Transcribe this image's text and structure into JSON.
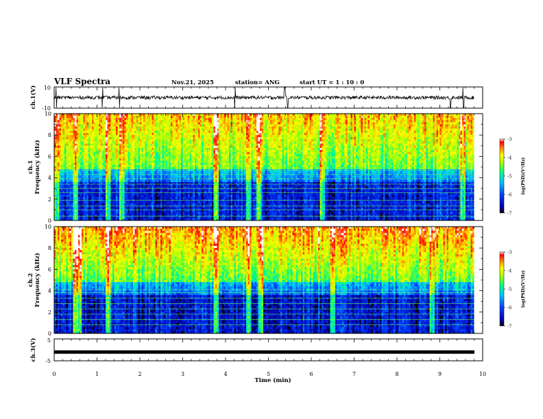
{
  "header": {
    "title": "VLF Spectra",
    "date": "Nov.21, 2025",
    "station": "station= ANG",
    "start": "start  UT =   1 : 10 : 0"
  },
  "chart_data": [
    {
      "type": "line",
      "name": "ch1-waveform",
      "ylabel": "ch.1(V)",
      "ylim": [
        -10,
        10
      ],
      "yticks": [
        "10",
        "-10"
      ],
      "xlim": [
        0,
        10
      ],
      "baseline": 0,
      "spike_times_min": [
        0.05,
        1.13,
        1.52,
        4.22,
        5.38,
        5.45,
        9.25,
        9.55
      ],
      "end_time_min": 9.8
    },
    {
      "type": "heatmap",
      "name": "ch1-spectrogram",
      "ylabel": "ch.1 Frequency (kHz)",
      "ylim": [
        0,
        10
      ],
      "yticks": [
        "0",
        "2",
        "4",
        "6",
        "8",
        "10"
      ],
      "xlim": [
        0,
        10
      ],
      "end_time_min": 9.8,
      "colorbar": {
        "range": [
          -7,
          -3
        ],
        "ticks": [
          "-3",
          "-4",
          "-5",
          "-6",
          "-7"
        ],
        "label": "log(PSD)(V²/Hz)"
      },
      "line_frequencies_khz": [
        0.4,
        1.0,
        1.35,
        1.9,
        2.6,
        3.0,
        3.4,
        3.9,
        4.3,
        4.7
      ],
      "bright_time_bands_min": [
        0.05,
        0.5,
        1.25,
        1.57,
        3.8,
        4.55,
        4.8,
        6.25,
        9.55
      ]
    },
    {
      "type": "heatmap",
      "name": "ch2-spectrogram",
      "ylabel": "ch.2 Frequency (kHz)",
      "ylim": [
        0,
        10
      ],
      "yticks": [
        "0",
        "2",
        "4",
        "6",
        "8",
        "10"
      ],
      "xlim": [
        0,
        10
      ],
      "end_time_min": 9.8,
      "colorbar": {
        "range": [
          -7,
          -3
        ],
        "ticks": [
          "-3",
          "-4",
          "-5",
          "-6",
          "-7"
        ],
        "label": "log(PSD)(V²/Hz)"
      },
      "line_frequencies_khz": [
        0.8,
        1.3,
        1.8,
        2.3,
        2.8,
        3.3,
        3.8,
        4.1
      ],
      "bright_time_bands_min": [
        0.5,
        0.6,
        1.27,
        3.8,
        4.55,
        4.82,
        6.5,
        8.82
      ]
    },
    {
      "type": "line",
      "name": "ch3-waveform",
      "ylabel": "ch.3(V)",
      "ylim": [
        -5,
        5
      ],
      "yticks": [
        "5",
        "-5"
      ],
      "xlim": [
        0,
        10
      ],
      "level_v": -1.0,
      "end_time_min": 10
    }
  ],
  "xaxis": {
    "label": "Time (min)",
    "ticks": [
      "0",
      "1",
      "2",
      "3",
      "4",
      "5",
      "6",
      "7",
      "8",
      "9",
      "10"
    ]
  },
  "colors": {
    "background": "#ffffff",
    "axis": "#000000",
    "colormap": [
      "#000000",
      "#0000a0",
      "#0000ff",
      "#0080ff",
      "#00e8e8",
      "#00ff60",
      "#c8ff00",
      "#ffff00",
      "#ff8000",
      "#ff0000",
      "#ffffff"
    ]
  }
}
